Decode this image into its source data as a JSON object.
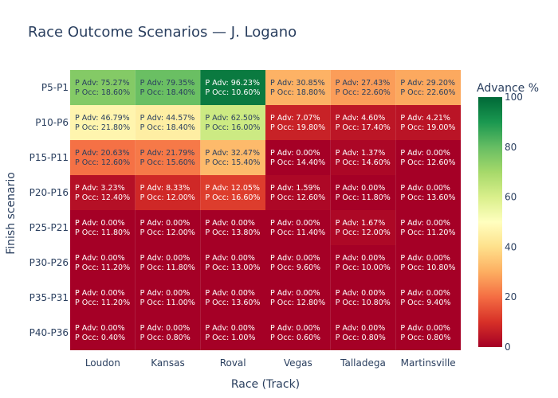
{
  "chart_data": {
    "type": "heatmap",
    "title": "Race Outcome Scenarios — J. Logano",
    "xlabel": "Race (Track)",
    "ylabel": "Finish scenario",
    "colorbar_title": "Advance %",
    "colorscale": "RdYlGn",
    "zmin": 0,
    "zmax": 100,
    "colorbar_ticks": [
      0,
      20,
      40,
      60,
      80,
      100
    ],
    "x": [
      "Loudon",
      "Kansas",
      "Roval",
      "Vegas",
      "Talladega",
      "Martinsville"
    ],
    "y": [
      "P5-P1",
      "P10-P6",
      "P15-P11",
      "P20-P16",
      "P25-P21",
      "P30-P26",
      "P35-P31",
      "P40-P36"
    ],
    "p_adv": [
      [
        75.27,
        79.35,
        96.23,
        30.85,
        27.43,
        29.2
      ],
      [
        46.79,
        44.57,
        62.5,
        7.07,
        4.6,
        4.21
      ],
      [
        20.63,
        21.79,
        32.47,
        0.0,
        1.37,
        0.0
      ],
      [
        3.23,
        8.33,
        12.05,
        1.59,
        0.0,
        0.0
      ],
      [
        0.0,
        0.0,
        0.0,
        0.0,
        1.67,
        0.0
      ],
      [
        0.0,
        0.0,
        0.0,
        0.0,
        0.0,
        0.0
      ],
      [
        0.0,
        0.0,
        0.0,
        0.0,
        0.0,
        0.0
      ],
      [
        0.0,
        0.0,
        0.0,
        0.0,
        0.0,
        0.0
      ]
    ],
    "p_occ": [
      [
        18.6,
        18.4,
        10.6,
        18.8,
        22.6,
        22.6
      ],
      [
        21.8,
        18.4,
        16.0,
        19.8,
        17.4,
        19.0
      ],
      [
        12.6,
        15.6,
        15.4,
        14.4,
        14.6,
        12.6
      ],
      [
        12.4,
        12.0,
        16.6,
        12.6,
        11.8,
        13.6
      ],
      [
        11.8,
        12.0,
        13.8,
        11.4,
        12.0,
        11.2
      ],
      [
        11.2,
        11.8,
        13.0,
        9.6,
        10.0,
        10.8
      ],
      [
        11.2,
        11.0,
        13.6,
        12.8,
        10.8,
        9.4
      ],
      [
        0.4,
        0.8,
        1.0,
        0.6,
        0.8,
        0.8
      ]
    ],
    "cell_label_prefix_adv": "P Adv: ",
    "cell_label_prefix_occ": "P Occ: "
  }
}
